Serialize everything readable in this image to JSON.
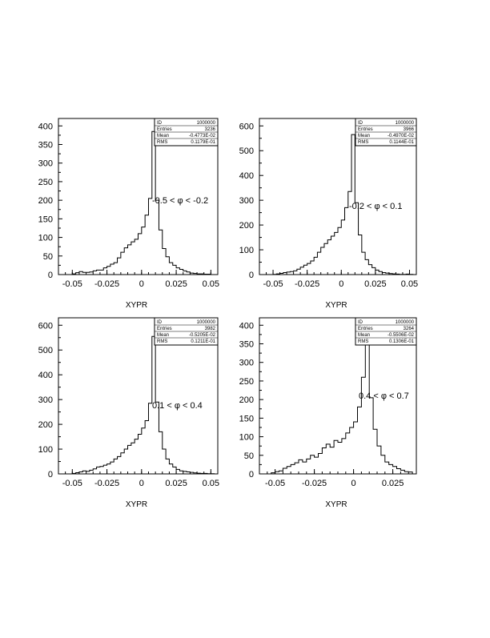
{
  "chart_data": [
    {
      "type": "histogram",
      "xlabel": "XYPR",
      "ylabel": "",
      "xlim": [
        -0.06,
        0.055
      ],
      "ylim": [
        0,
        420
      ],
      "yticks": [
        "0",
        "50",
        "100",
        "150",
        "200",
        "250",
        "300",
        "350",
        "400"
      ],
      "xticks": [
        "-0.05",
        "-0.025",
        "0",
        "0.025",
        "0.05"
      ],
      "annotation": "-0.5  < φ < -0.2",
      "stats": [
        {
          "label": "ID",
          "value": "1000000"
        },
        {
          "label": "Entries",
          "value": "3236"
        },
        {
          "label": "Mean",
          "value": "-0.4773E-02"
        },
        {
          "label": "RMS",
          "value": "0.1179E-01"
        }
      ],
      "bin_edges": [
        -0.0525,
        0.0525
      ],
      "values": [
        0,
        2,
        5,
        8,
        6,
        6,
        7,
        10,
        12,
        12,
        18,
        22,
        28,
        32,
        45,
        60,
        72,
        80,
        88,
        95,
        110,
        128,
        160,
        205,
        385,
        200,
        120,
        70,
        48,
        32,
        25,
        18,
        14,
        10,
        7,
        4,
        3,
        2,
        2,
        1,
        1,
        0
      ]
    },
    {
      "type": "histogram",
      "xlabel": "XYPR",
      "ylabel": "",
      "xlim": [
        -0.06,
        0.055
      ],
      "ylim": [
        0,
        630
      ],
      "yticks": [
        "0",
        "100",
        "200",
        "300",
        "400",
        "500",
        "600"
      ],
      "xticks": [
        "-0.05",
        "-0.025",
        "0",
        "0.025",
        "0.05"
      ],
      "annotation": "-0.2  < φ < 0.1",
      "stats": [
        {
          "label": "ID",
          "value": "1000000"
        },
        {
          "label": "Entries",
          "value": "3966"
        },
        {
          "label": "Mean",
          "value": "-0.4970E-02"
        },
        {
          "label": "RMS",
          "value": "0.1144E-01"
        }
      ],
      "bin_edges": [
        -0.0525,
        0.0525
      ],
      "values": [
        0,
        1,
        3,
        5,
        8,
        10,
        12,
        15,
        22,
        30,
        38,
        45,
        55,
        70,
        90,
        110,
        125,
        140,
        155,
        170,
        190,
        220,
        270,
        335,
        565,
        290,
        160,
        90,
        60,
        40,
        28,
        18,
        12,
        8,
        6,
        4,
        3,
        2,
        1,
        1,
        2,
        1
      ]
    },
    {
      "type": "histogram",
      "xlabel": "XYPR",
      "ylabel": "",
      "xlim": [
        -0.06,
        0.055
      ],
      "ylim": [
        0,
        630
      ],
      "yticks": [
        "0",
        "100",
        "200",
        "300",
        "400",
        "500",
        "600"
      ],
      "xticks": [
        "-0.05",
        "-0.025",
        "0",
        "0.025",
        "0.05"
      ],
      "annotation": "0.1  < φ < 0.4",
      "stats": [
        {
          "label": "ID",
          "value": "1000000"
        },
        {
          "label": "Entries",
          "value": "3982"
        },
        {
          "label": "Mean",
          "value": "-0.5205E-02"
        },
        {
          "label": "RMS",
          "value": "0.1211E-01"
        }
      ],
      "bin_edges": [
        -0.0525,
        0.0525
      ],
      "values": [
        0,
        2,
        5,
        8,
        12,
        10,
        15,
        20,
        28,
        30,
        35,
        40,
        48,
        60,
        70,
        85,
        100,
        115,
        125,
        140,
        160,
        185,
        215,
        285,
        555,
        290,
        170,
        100,
        60,
        40,
        28,
        18,
        12,
        10,
        8,
        6,
        4,
        3,
        2,
        2,
        1,
        1
      ]
    },
    {
      "type": "histogram",
      "xlabel": "XYPR",
      "ylabel": "",
      "xlim": [
        -0.06,
        0.04
      ],
      "ylim": [
        0,
        420
      ],
      "yticks": [
        "0",
        "50",
        "100",
        "150",
        "200",
        "250",
        "300",
        "350",
        "400"
      ],
      "xticks": [
        "-0.05",
        "-0.025",
        "0",
        "0.025"
      ],
      "annotation": "0.4  < φ < 0.7",
      "stats": [
        {
          "label": "ID",
          "value": "1000000"
        },
        {
          "label": "Entries",
          "value": "3264"
        },
        {
          "label": "Mean",
          "value": "-0.5506E-02"
        },
        {
          "label": "RMS",
          "value": "0.1306E-01"
        }
      ],
      "bin_edges": [
        -0.0525,
        0.0375
      ],
      "values": [
        3,
        6,
        8,
        15,
        20,
        25,
        30,
        38,
        32,
        40,
        50,
        45,
        55,
        70,
        80,
        72,
        90,
        85,
        95,
        110,
        125,
        140,
        180,
        260,
        365,
        205,
        120,
        75,
        50,
        32,
        25,
        20,
        14,
        10,
        6,
        5
      ]
    }
  ]
}
